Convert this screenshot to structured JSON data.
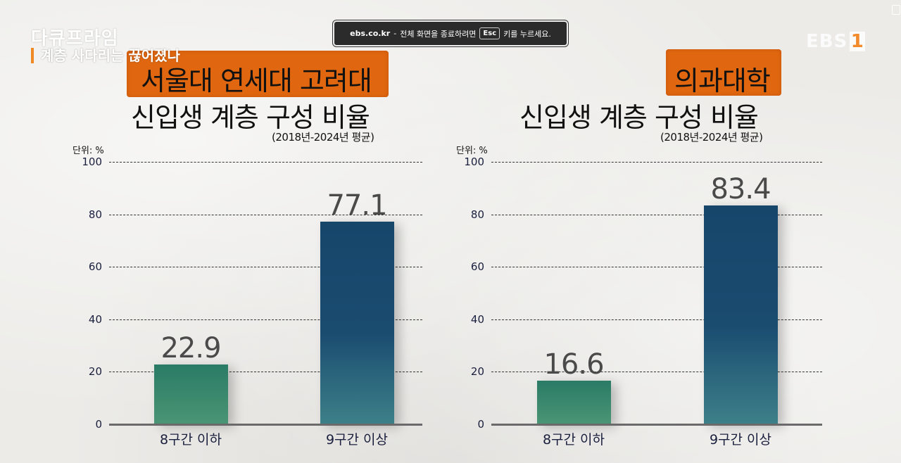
{
  "overlay": {
    "program_title": "다큐프라임",
    "episode_title": "계층 사다리는 끊어졌나",
    "channel_logo_text": "EBS",
    "channel_logo_number": "1",
    "fullscreen_notice": {
      "domain": "ebs.co.kr",
      "separator": "-",
      "message_before_key": "전체 화면을 종료하려면",
      "key": "Esc",
      "message_after_key": "키를 누르세요."
    }
  },
  "colors": {
    "highlight": "#e0670f",
    "bar_low": "#2f8068",
    "bar_high": "#17466b",
    "logo_accent": "#f28b2c"
  },
  "charts": [
    {
      "highlight_title": "서울대 연세대 고려대",
      "title": "신입생 계층 구성 비율",
      "subtitle": "(2018년-2024년 평균)",
      "unit": "단위: %",
      "ticks": [
        "100",
        "80",
        "60",
        "40",
        "20",
        "0"
      ],
      "bars": [
        {
          "label": "8구간 이하",
          "value": "22.9"
        },
        {
          "label": "9구간 이상",
          "value": "77.1"
        }
      ]
    },
    {
      "highlight_title": "의과대학",
      "title": "신입생 계층 구성 비율",
      "subtitle": "(2018년-2024년 평균)",
      "unit": "단위: %",
      "ticks": [
        "100",
        "80",
        "60",
        "40",
        "20",
        "0"
      ],
      "bars": [
        {
          "label": "8구간 이하",
          "value": "16.6"
        },
        {
          "label": "9구간 이상",
          "value": "83.4"
        }
      ]
    }
  ],
  "chart_data": [
    {
      "type": "bar",
      "title": "서울대 연세대 고려대 신입생 계층 구성 비율",
      "subtitle": "(2018년-2024년 평균)",
      "categories": [
        "8구간 이하",
        "9구간 이상"
      ],
      "values": [
        22.9,
        77.1
      ],
      "xlabel": "",
      "ylabel": "단위: %",
      "ylim": [
        0,
        100
      ],
      "yticks": [
        0,
        20,
        40,
        60,
        80,
        100
      ],
      "grid": "horizontal dashed",
      "legend": "none"
    },
    {
      "type": "bar",
      "title": "의과대학 신입생 계층 구성 비율",
      "subtitle": "(2018년-2024년 평균)",
      "categories": [
        "8구간 이하",
        "9구간 이상"
      ],
      "values": [
        16.6,
        83.4
      ],
      "xlabel": "",
      "ylabel": "단위: %",
      "ylim": [
        0,
        100
      ],
      "yticks": [
        0,
        20,
        40,
        60,
        80,
        100
      ],
      "grid": "horizontal dashed",
      "legend": "none"
    }
  ]
}
